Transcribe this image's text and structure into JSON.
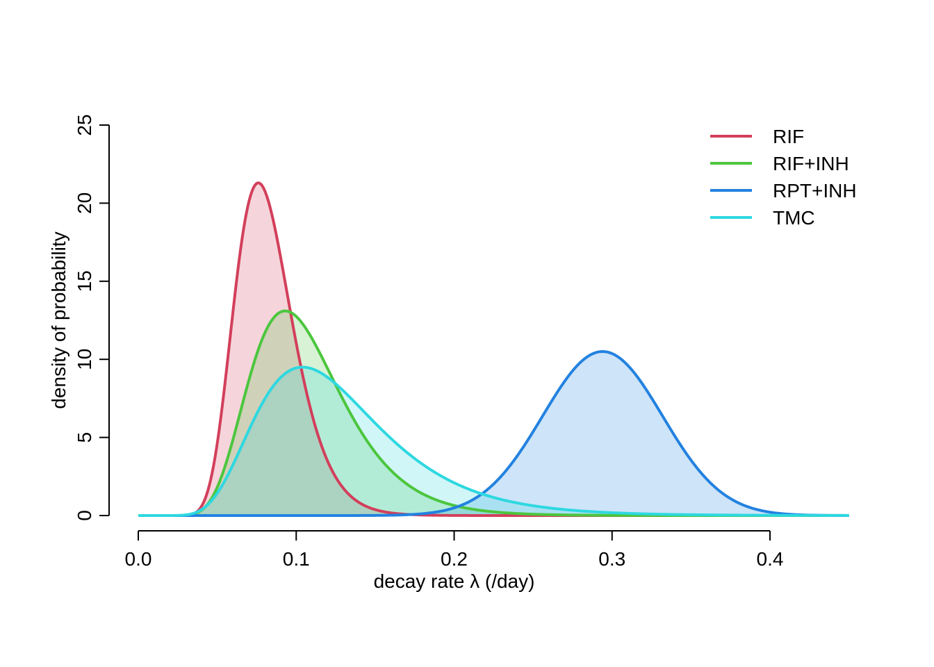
{
  "chart_data": {
    "type": "area",
    "title": "",
    "xlabel": "decay rate λ (/day)",
    "ylabel": "density of probability",
    "xlim": [
      0,
      0.45
    ],
    "ylim": [
      0,
      25
    ],
    "xticks": [
      0.0,
      0.1,
      0.2,
      0.3,
      0.4
    ],
    "xtick_labels": [
      "0.0",
      "0.1",
      "0.2",
      "0.3",
      "0.4"
    ],
    "yticks": [
      0,
      5,
      10,
      15,
      20,
      25
    ],
    "ytick_labels": [
      "0",
      "5",
      "10",
      "15",
      "20",
      "25"
    ],
    "grid": false,
    "legend_position": "top-right",
    "series": [
      {
        "name": "RIF",
        "distribution": "lognormal",
        "mode": 0.076,
        "peak": 21.3,
        "color": "#d33f5b"
      },
      {
        "name": "RIF+INH",
        "distribution": "lognormal",
        "mode": 0.093,
        "peak": 13.1,
        "color": "#4cc63e"
      },
      {
        "name": "RPT+INH",
        "distribution": "normal",
        "mode": 0.294,
        "peak": 10.5,
        "color": "#2282e0"
      },
      {
        "name": "TMC",
        "distribution": "lognormal",
        "mode": 0.104,
        "peak": 9.5,
        "color": "#2ed8e0"
      }
    ]
  }
}
